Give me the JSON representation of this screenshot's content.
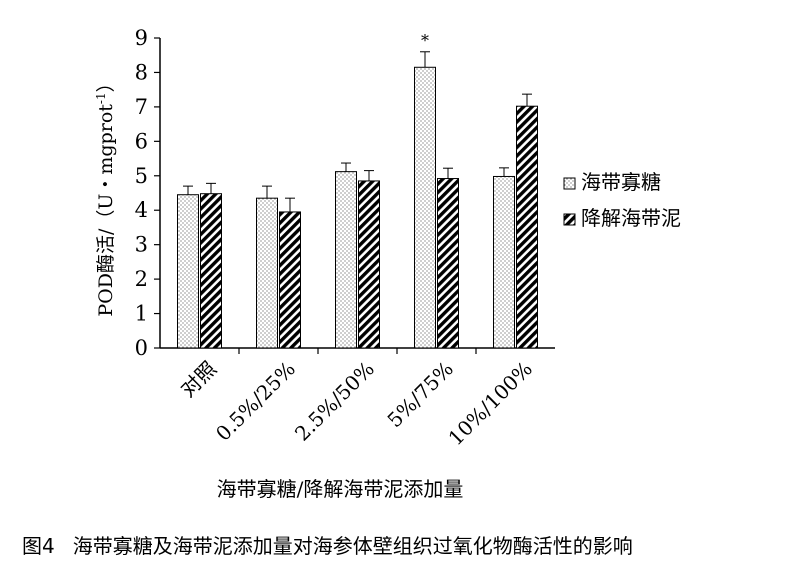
{
  "chart_data": {
    "type": "bar",
    "categories": [
      "对照",
      "0.5%/25%",
      "2.5%/50%",
      "5%/75%",
      "10%/100%"
    ],
    "series": [
      {
        "name": "海带寡糖",
        "values": [
          4.45,
          4.35,
          5.12,
          8.15,
          4.98
        ],
        "errors": [
          0.25,
          0.35,
          0.25,
          0.45,
          0.25
        ],
        "pattern": "dots"
      },
      {
        "name": "降解海带泥",
        "values": [
          4.48,
          3.95,
          4.85,
          4.92,
          7.02
        ],
        "errors": [
          0.3,
          0.4,
          0.3,
          0.3,
          0.35
        ],
        "pattern": "diagonal-stripes"
      }
    ],
    "annotations": [
      {
        "category": "5%/75%",
        "series": 0,
        "text": "*"
      }
    ],
    "xlabel": "海带寡糖/降解海带泥添加量",
    "ylabel": "POD酶活/（U・mgprot",
    "ylabel_superscript": "-1",
    "ylabel_close": "）",
    "ylim": [
      0,
      9
    ],
    "yticks": [
      0,
      1,
      2,
      3,
      4,
      5,
      6,
      7,
      8,
      9
    ],
    "legend_position": "right",
    "grid": false
  },
  "caption": {
    "number": "图4",
    "text": "海带寡糖及海带泥添加量对海参体壁组织过氧化物酶活性的影响"
  }
}
